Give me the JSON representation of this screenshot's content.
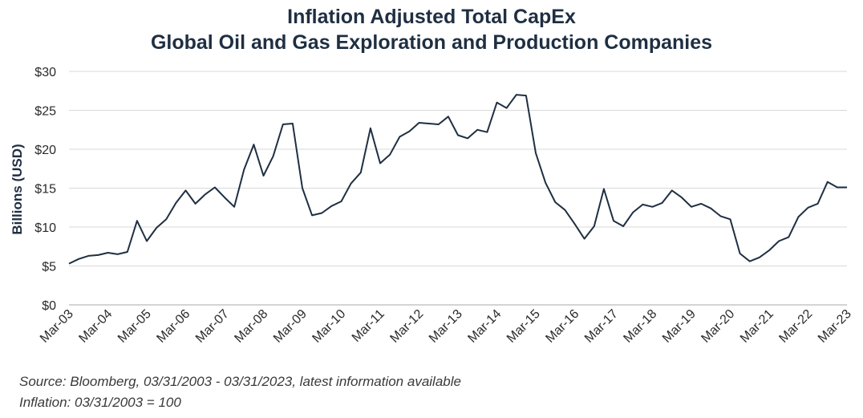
{
  "chart_data": {
    "type": "line",
    "title": "Inflation Adjusted Total CapEx",
    "subtitle": "Global Oil and Gas Exploration and Production Companies",
    "ylabel": "Billions (USD)",
    "xlabel": "",
    "ylim": [
      0,
      30
    ],
    "yticks": [
      0,
      5,
      10,
      15,
      20,
      25,
      30
    ],
    "ytick_labels": [
      "$0",
      "$5",
      "$10",
      "$15",
      "$20",
      "$25",
      "$30"
    ],
    "xtick_labels": [
      "Mar-03",
      "Mar-04",
      "Mar-05",
      "Mar-06",
      "Mar-07",
      "Mar-08",
      "Mar-09",
      "Mar-10",
      "Mar-11",
      "Mar-12",
      "Mar-13",
      "Mar-14",
      "Mar-15",
      "Mar-16",
      "Mar-17",
      "Mar-18",
      "Mar-19",
      "Mar-20",
      "Mar-21",
      "Mar-22",
      "Mar-23"
    ],
    "grid": true,
    "line_color": "#1f2f42",
    "series": [
      {
        "name": "Inflation Adjusted Total CapEx",
        "note": "quarterly, x = quarter index from Mar-03 (0) to Mar-23 (80)",
        "x": [
          0,
          1,
          2,
          3,
          4,
          5,
          6,
          7,
          8,
          9,
          10,
          11,
          12,
          13,
          14,
          15,
          16,
          17,
          18,
          19,
          20,
          21,
          22,
          23,
          24,
          25,
          26,
          27,
          28,
          29,
          30,
          31,
          32,
          33,
          34,
          35,
          36,
          37,
          38,
          39,
          40,
          41,
          42,
          43,
          44,
          45,
          46,
          47,
          48,
          49,
          50,
          51,
          52,
          53,
          54,
          55,
          56,
          57,
          58,
          59,
          60,
          61,
          62,
          63,
          64,
          65,
          66,
          67,
          68,
          69,
          70,
          71,
          72,
          73,
          74,
          75,
          76,
          77,
          78,
          79,
          80
        ],
        "values": [
          5.3,
          5.9,
          6.3,
          6.4,
          6.7,
          6.5,
          6.8,
          10.8,
          8.2,
          9.9,
          11.0,
          13.1,
          14.7,
          13.0,
          14.2,
          15.1,
          13.8,
          12.6,
          17.4,
          20.6,
          16.6,
          19.1,
          23.2,
          23.3,
          15.0,
          11.5,
          11.8,
          12.7,
          13.3,
          15.6,
          17.0,
          22.7,
          18.2,
          19.3,
          21.6,
          22.3,
          23.4,
          23.3,
          23.2,
          24.2,
          21.8,
          21.4,
          22.5,
          22.2,
          26.0,
          25.3,
          27.0,
          26.9,
          19.5,
          15.7,
          13.2,
          12.2,
          10.4,
          8.5,
          10.1,
          14.9,
          10.8,
          10.1,
          11.9,
          12.9,
          12.6,
          13.1,
          14.7,
          13.8,
          12.6,
          13.0,
          12.4,
          11.4,
          11.0,
          6.6,
          5.6,
          6.1,
          7.0,
          8.2,
          8.7,
          11.3,
          12.5,
          13.0,
          15.8,
          15.1,
          15.1
        ]
      }
    ]
  },
  "source": {
    "line1": "Source: Bloomberg, 03/31/2003 - 03/31/2023, latest information available",
    "line2": "Inflation: 03/31/2003 = 100"
  }
}
